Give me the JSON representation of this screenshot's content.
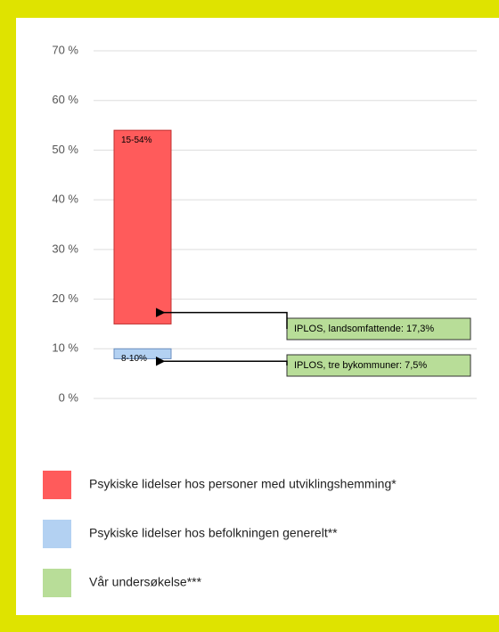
{
  "chart_data": {
    "type": "floating-bar",
    "ylim": [
      0,
      70
    ],
    "yticks": [
      {
        "value": 0,
        "label": "0 %"
      },
      {
        "value": 10,
        "label": "10 %"
      },
      {
        "value": 20,
        "label": "20 %"
      },
      {
        "value": 30,
        "label": "30 %"
      },
      {
        "value": 40,
        "label": "40 %"
      },
      {
        "value": 50,
        "label": "50 %"
      },
      {
        "value": 60,
        "label": "60 %"
      },
      {
        "value": 70,
        "label": "70 %"
      }
    ],
    "grid": true,
    "bars": [
      {
        "low": 15,
        "high": 54,
        "label": "15-54%",
        "color": "#ff5b5b"
      },
      {
        "low": 8,
        "high": 10,
        "label": "8-10%",
        "color": "#b3d1f2"
      }
    ],
    "annotations": [
      {
        "text": "IPLOS, landsomfattende: 17,3%",
        "value": 17.3,
        "color": "#b8dd98"
      },
      {
        "text": "IPLOS, tre bykommuner: 7,5%",
        "value": 7.5,
        "color": "#b8dd98"
      }
    ],
    "legend": [
      {
        "name": "Psykiske lidelser hos personer med utviklingshemming*",
        "color": "#ff5b5b"
      },
      {
        "name": "Psykiske lidelser hos befolkningen generelt**",
        "color": "#b3d1f2"
      },
      {
        "name": "Vår undersøkelse***",
        "color": "#b8dd98"
      }
    ]
  }
}
